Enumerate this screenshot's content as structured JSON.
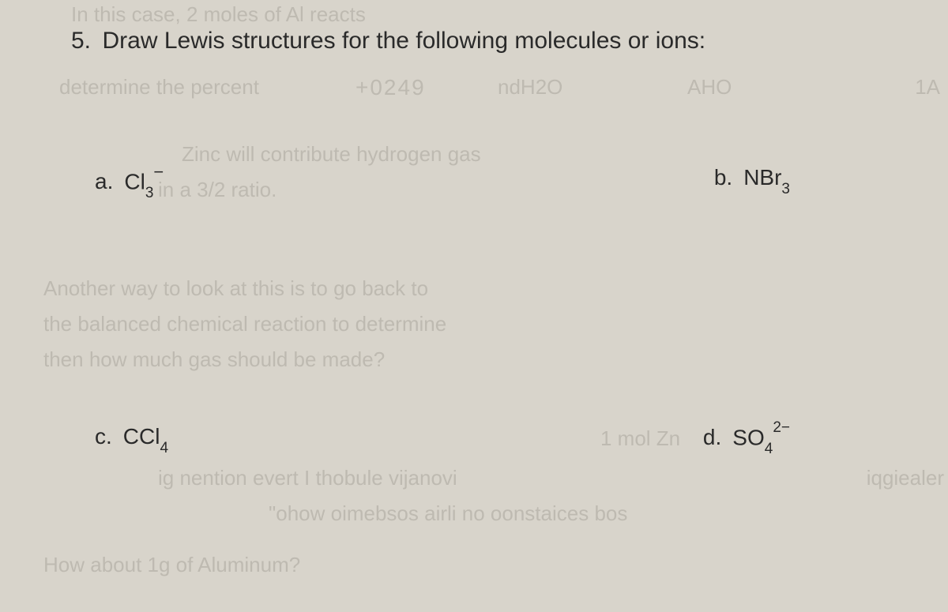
{
  "question": {
    "number": "5.",
    "text": "Draw Lewis structures for the following molecules or ions:"
  },
  "options": {
    "a": {
      "label": "a.",
      "formula_base": "Cl",
      "subscript": "3",
      "superscript": "−"
    },
    "b": {
      "label": "b.",
      "formula_base": "NBr",
      "subscript": "3",
      "superscript": ""
    },
    "c": {
      "label": "c.",
      "formula_base": "CCl",
      "subscript": "4",
      "superscript": ""
    },
    "d": {
      "label": "d.",
      "formula_base": "SO",
      "subscript": "4",
      "superscript": "2−"
    }
  },
  "ghost_text": {
    "g1": "In this case, 2 moles of Al reacts",
    "g2": "determine the percent",
    "g3": "+0249",
    "g4": "ndH2O",
    "g5": "AHO",
    "g6": "1A",
    "g7": "Zinc will contribute hydrogen gas",
    "g8": "in a 3/2 ratio.",
    "g9": "Another way to look at this is to go back to",
    "g10": "the balanced chemical reaction to determine",
    "g11": "then how much gas should be made?",
    "g12": "1 mol Zn",
    "g13": "ig nention evert I thobule vijanovi",
    "g14": "\"ohow oimebsos airli no oonstaices bos",
    "g15": "How about 1g of Aluminum?",
    "g16": "iqgiealer",
    "g17": ""
  },
  "styling": {
    "background_color": "#d8d4cb",
    "text_color": "#2a2a2a",
    "ghost_color": "rgba(100, 95, 85, 0.22)",
    "question_fontsize": 30,
    "option_fontsize": 28,
    "subscript_fontsize": 19,
    "font_family": "Arial"
  }
}
